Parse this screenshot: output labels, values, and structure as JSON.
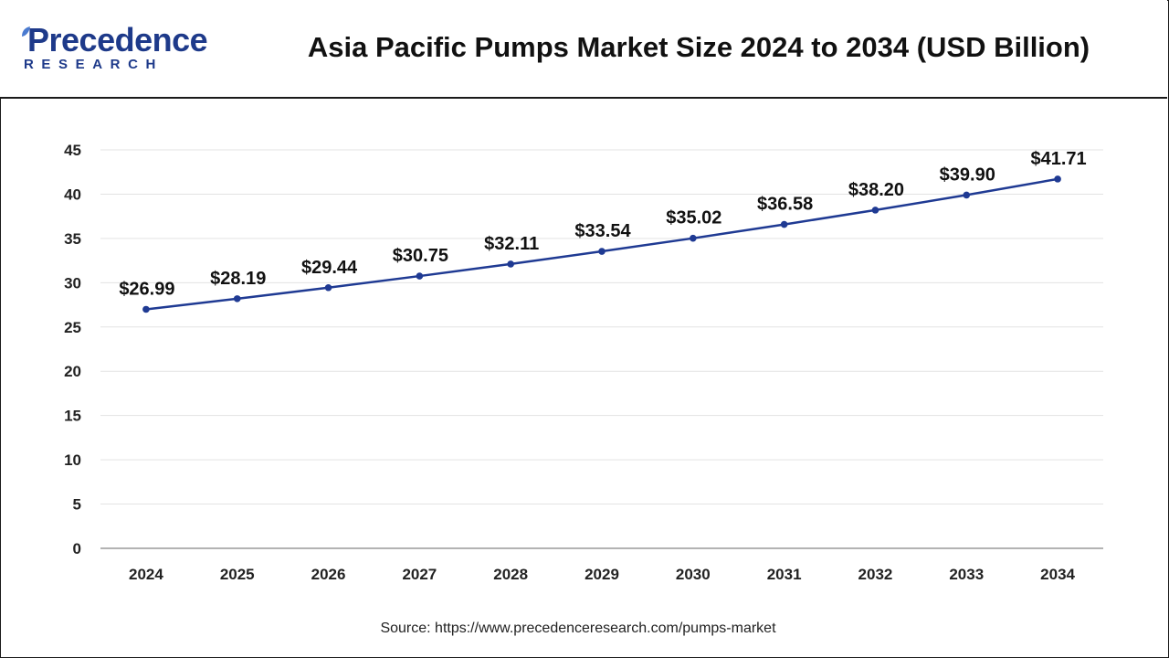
{
  "header": {
    "logo_name": "Precedence",
    "logo_sub": "RESEARCH",
    "title": "Asia Pacific Pumps Market Size 2024 to 2034 (USD Billion)"
  },
  "source": "Source: https://www.precedenceresearch.com/pumps-market",
  "colors": {
    "line": "#1f3a93",
    "brand": "#1e3a8a",
    "grid": "#e3e3e3"
  },
  "chart_data": {
    "type": "line",
    "title": "Asia Pacific Pumps Market Size 2024 to 2034 (USD Billion)",
    "xlabel": "",
    "ylabel": "",
    "categories": [
      "2024",
      "2025",
      "2026",
      "2027",
      "2028",
      "2029",
      "2030",
      "2031",
      "2032",
      "2033",
      "2034"
    ],
    "values": [
      26.99,
      28.19,
      29.44,
      30.75,
      32.11,
      33.54,
      35.02,
      36.58,
      38.2,
      39.9,
      41.71
    ],
    "data_labels": [
      "$26.99",
      "$28.19",
      "$29.44",
      "$30.75",
      "$32.11",
      "$33.54",
      "$35.02",
      "$36.58",
      "$38.20",
      "$39.90",
      "$41.71"
    ],
    "ylim": [
      0,
      45
    ],
    "yticks": [
      0,
      5,
      10,
      15,
      20,
      25,
      30,
      35,
      40,
      45
    ],
    "grid": true,
    "legend": "none"
  }
}
